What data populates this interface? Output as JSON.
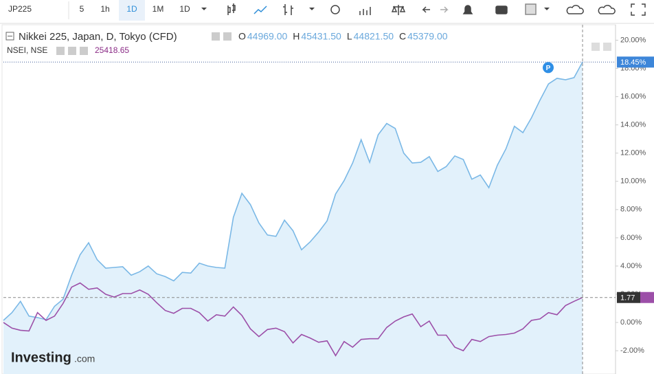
{
  "toolbar": {
    "symbol": "JP225",
    "intervals": [
      "5",
      "1h",
      "1D",
      "1M",
      "1D"
    ]
  },
  "header": {
    "symbol": "Nikkei 225, Japan, D, Tokyo (CFD)",
    "ohlc": [
      {
        "key": "O",
        "value": "44969.00"
      },
      {
        "key": "H",
        "value": "45431.50"
      },
      {
        "key": "L",
        "value": "44821.50"
      },
      {
        "key": "C",
        "value": "45379.00"
      }
    ]
  },
  "compare": {
    "symbol": "NSEI, NSE",
    "value": "25418.65"
  },
  "marker": "P",
  "logo": {
    "brand": "Investing",
    "suffix": ".com"
  },
  "chart_data": {
    "type": "line",
    "categories": [
      null,
      null,
      null,
      null,
      null,
      null,
      null,
      null,
      null,
      null,
      null,
      null,
      null,
      null,
      null,
      null,
      null,
      null,
      null,
      null,
      null,
      null,
      null,
      null,
      null,
      null,
      null,
      null,
      null,
      null,
      null,
      null,
      null,
      null,
      null,
      null,
      null,
      null,
      null,
      null,
      null,
      null,
      null,
      null,
      null,
      null,
      null,
      null,
      null,
      null,
      null,
      null,
      null,
      null,
      null,
      null,
      null,
      null,
      null,
      null,
      null,
      null,
      null,
      null,
      null,
      null,
      null,
      null,
      null
    ],
    "series": [
      {
        "name": "Nikkei 225",
        "color": "#7ab8e6",
        "fill": "#e2f1fb",
        "last_value_label": "18.45%",
        "label_color": "#3d86d9",
        "values": [
          0.15,
          0.7,
          1.5,
          0.45,
          0.35,
          0.2,
          1.15,
          1.65,
          3.35,
          4.8,
          5.65,
          4.45,
          3.85,
          3.9,
          3.95,
          3.35,
          3.6,
          4.0,
          3.45,
          3.25,
          2.95,
          3.55,
          3.5,
          4.2,
          4.0,
          3.9,
          3.85,
          7.45,
          9.15,
          8.35,
          7.05,
          6.2,
          6.1,
          7.25,
          6.5,
          5.15,
          5.7,
          6.4,
          7.2,
          9.1,
          10.05,
          11.3,
          12.95,
          11.35,
          13.3,
          14.1,
          13.75,
          12.0,
          11.3,
          11.35,
          11.75,
          10.7,
          11.05,
          11.8,
          11.55,
          10.15,
          10.45,
          9.55,
          11.15,
          12.3,
          13.9,
          13.45,
          14.5,
          15.75,
          16.9,
          17.3,
          17.2,
          17.35,
          18.45
        ]
      },
      {
        "name": "NSEI",
        "color": "#9c4fa8",
        "last_value_label": "1.77",
        "label_color": "#333333",
        "values": [
          0,
          -0.4,
          -0.55,
          -0.6,
          0.7,
          0.15,
          0.45,
          1.35,
          2.5,
          2.8,
          2.35,
          2.45,
          2.0,
          1.8,
          2.05,
          2.05,
          2.3,
          2.0,
          1.4,
          0.85,
          0.65,
          1.0,
          1.0,
          0.7,
          0.1,
          0.55,
          0.45,
          1.1,
          0.5,
          -0.45,
          -1.0,
          -0.5,
          -0.4,
          -0.65,
          -1.45,
          -0.85,
          -1.1,
          -1.4,
          -1.3,
          -2.35,
          -1.35,
          -1.75,
          -1.2,
          -1.15,
          -1.15,
          -0.35,
          0.1,
          0.4,
          0.6,
          -0.3,
          0.1,
          -0.9,
          -0.9,
          -1.75,
          -2.0,
          -1.2,
          -1.35,
          -1.0,
          -0.9,
          -0.85,
          -0.75,
          -0.45,
          0.15,
          0.25,
          0.7,
          0.55,
          1.2,
          1.5,
          1.77
        ]
      }
    ],
    "ylim": [
      -3.65,
      20.9
    ],
    "yticks": [
      {
        "value": 20,
        "label": "20.00%"
      },
      {
        "value": 18,
        "label": "18.00%"
      },
      {
        "value": 16,
        "label": "16.00%"
      },
      {
        "value": 14,
        "label": "14.00%"
      },
      {
        "value": 12,
        "label": "12.00%"
      },
      {
        "value": 10,
        "label": "10.00%"
      },
      {
        "value": 8,
        "label": "8.00%"
      },
      {
        "value": 6,
        "label": "6.00%"
      },
      {
        "value": 4,
        "label": "4.00%"
      },
      {
        "value": 2,
        "label": "2.00%"
      },
      {
        "value": 0,
        "label": "0.00%"
      },
      {
        "value": -2,
        "label": "-2.00%"
      }
    ],
    "grid": false
  }
}
